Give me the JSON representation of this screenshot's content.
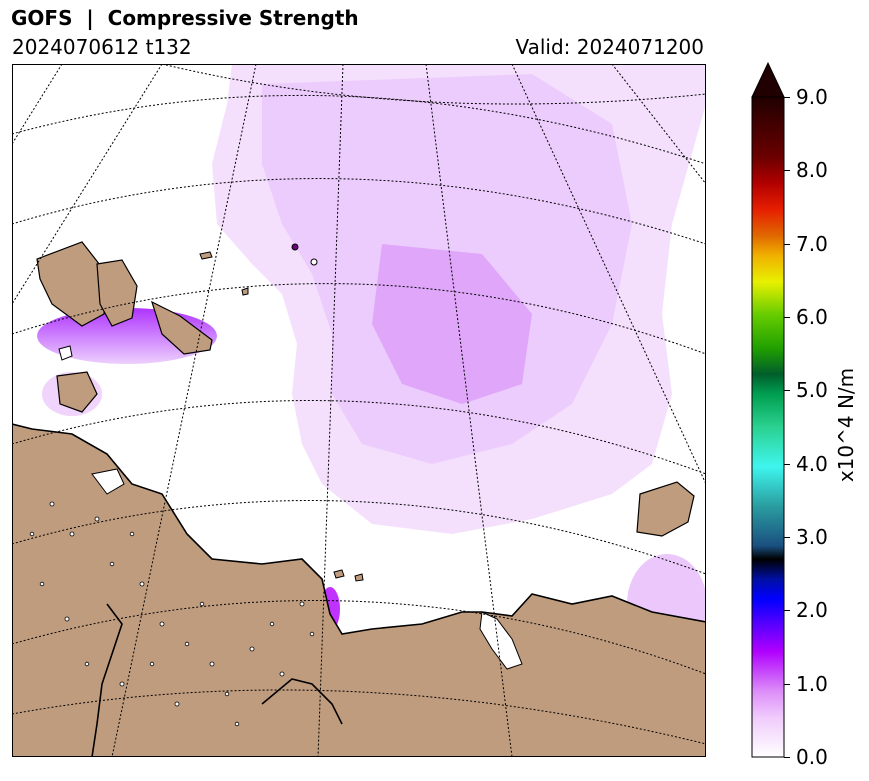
{
  "header": {
    "title": "GOFS  |  Compressive Strength",
    "run": "2024070612 t132",
    "valid": "Valid: 2024071200"
  },
  "colorbar": {
    "unit_label": "x10^4 N/m",
    "ticks": [
      "0.0",
      "1.0",
      "2.0",
      "3.0",
      "4.0",
      "5.0",
      "6.0",
      "7.0",
      "8.0",
      "9.0"
    ],
    "min": 0.0,
    "max": 9.0,
    "extend": "max"
  },
  "colors": {
    "land": "#c09c7e",
    "ice_light": "#f3dafd",
    "ice_mid": "#e5b6fb",
    "ice_strong": "#9a00ff",
    "gridline": "#000000"
  }
}
